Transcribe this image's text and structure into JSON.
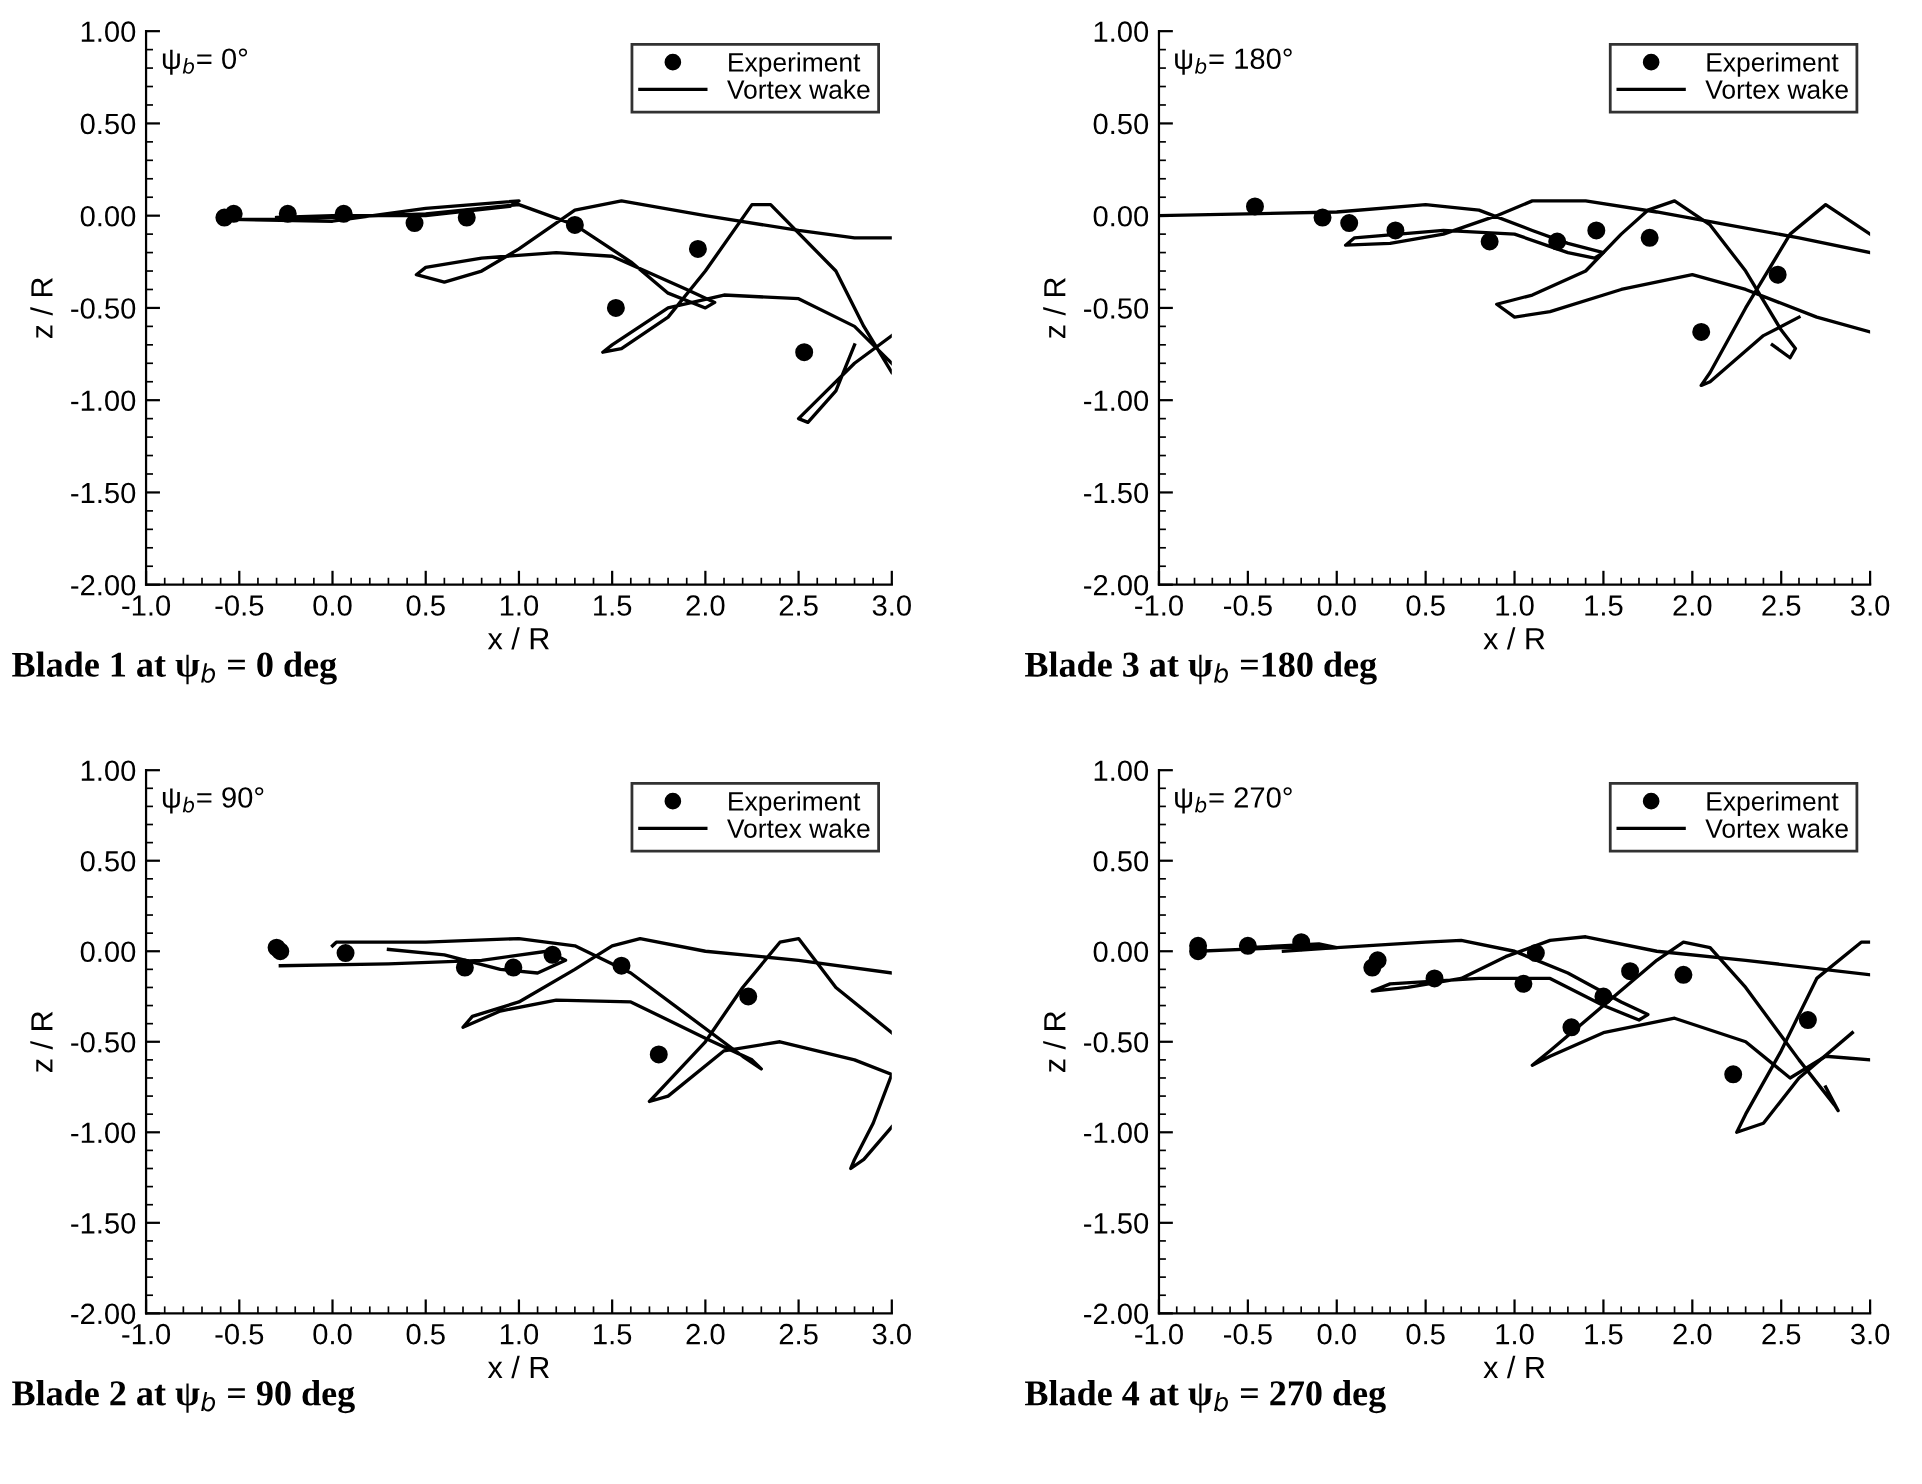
{
  "chart_data": [
    {
      "type": "scatter",
      "title": "Blade 1 at ψ$_{b}$ = 0 deg",
      "xlabel": "x / R",
      "ylabel": "z / R",
      "annotations": [
        "ψ$_{b}$= 0°"
      ],
      "xlim": [
        -1.0,
        3.0
      ],
      "ylim": [
        -2.0,
        1.0
      ],
      "xticks": [
        {
          "value": -1.0,
          "label": "-1.0"
        },
        {
          "value": -0.5,
          "label": "-0.5"
        },
        {
          "value": 0.0,
          "label": "0.0"
        },
        {
          "value": 0.5,
          "label": "0.5"
        },
        {
          "value": 1.0,
          "label": "1.0"
        },
        {
          "value": 1.5,
          "label": "1.5"
        },
        {
          "value": 2.0,
          "label": "2.0"
        },
        {
          "value": 2.5,
          "label": "2.5"
        },
        {
          "value": 3.0,
          "label": "3.0"
        }
      ],
      "yticks": [
        {
          "value": 1.0,
          "label": "1.00"
        },
        {
          "value": 0.5,
          "label": "0.50"
        },
        {
          "value": 0.0,
          "label": "0.00"
        },
        {
          "value": -0.5,
          "label": "-0.50"
        },
        {
          "value": -1.0,
          "label": "-1.00"
        },
        {
          "value": -1.5,
          "label": "-1.50"
        },
        {
          "value": -2.0,
          "label": "-2.00"
        }
      ],
      "grid": false,
      "legend": "top right",
      "series": [
        {
          "name": "Experiment",
          "type": "scatter",
          "marker": "circle",
          "color": "#000000",
          "x": [
            -0.58,
            -0.53,
            -0.24,
            0.06,
            0.44,
            0.72,
            1.3,
            1.52,
            1.96,
            2.53
          ],
          "values": [
            -0.01,
            0.01,
            0.01,
            0.01,
            -0.04,
            -0.01,
            -0.05,
            -0.5,
            -0.18,
            -0.74
          ]
        },
        {
          "name": "Vortex wake",
          "type": "line",
          "color": "#000000",
          "x": [
            -0.3,
            0.0,
            0.5,
            0.95,
            1.0,
            0.5,
            0.0,
            -0.55,
            -0.3,
            0.5,
            1.0,
            1.3,
            1.6,
            1.8,
            2.0,
            2.05,
            1.9,
            1.5,
            1.2,
            0.8,
            0.5,
            0.45,
            0.6,
            0.8,
            1.0,
            1.3,
            1.55,
            2.0,
            2.5,
            2.8,
            3.0
          ],
          "values": [
            -0.01,
            0.0,
            0.0,
            0.05,
            0.08,
            0.04,
            -0.03,
            -0.02,
            -0.02,
            0.01,
            0.06,
            -0.05,
            -0.25,
            -0.42,
            -0.5,
            -0.47,
            -0.4,
            -0.22,
            -0.2,
            -0.23,
            -0.28,
            -0.32,
            -0.36,
            -0.3,
            -0.18,
            0.03,
            0.08,
            0.0,
            -0.08,
            -0.12,
            -0.12
          ]
        },
        {
          "type": "line",
          "color": "#000000",
          "x": [
            3.0,
            2.8,
            2.5,
            2.1,
            1.8,
            1.5,
            1.45,
            1.55,
            1.8,
            2.0,
            2.25,
            2.35,
            2.7,
            2.85,
            3.0
          ],
          "values": [
            -0.8,
            -0.6,
            -0.45,
            -0.43,
            -0.5,
            -0.7,
            -0.74,
            -0.72,
            -0.55,
            -0.3,
            0.06,
            0.06,
            -0.3,
            -0.6,
            -0.85
          ]
        },
        {
          "type": "line",
          "color": "#000000",
          "x": [
            3.0,
            2.8,
            2.6,
            2.5,
            2.55,
            2.7,
            2.8
          ],
          "values": [
            -0.65,
            -0.8,
            -1.0,
            -1.1,
            -1.12,
            -0.95,
            -0.7
          ]
        }
      ]
    },
    {
      "type": "scatter",
      "title": "Blade 3 at ψ$_{b}$ =180 deg",
      "xlabel": "x / R",
      "ylabel": "z / R",
      "annotations": [
        "ψ$_{b}$= 180°"
      ],
      "xlim": [
        -1.0,
        3.0
      ],
      "ylim": [
        -2.0,
        1.0
      ],
      "xticks": [
        {
          "value": -1.0,
          "label": "-1.0"
        },
        {
          "value": -0.5,
          "label": "-0.5"
        },
        {
          "value": 0.0,
          "label": "0.0"
        },
        {
          "value": 0.5,
          "label": "0.5"
        },
        {
          "value": 1.0,
          "label": "1.0"
        },
        {
          "value": 1.5,
          "label": "1.5"
        },
        {
          "value": 2.0,
          "label": "2.0"
        },
        {
          "value": 2.5,
          "label": "2.5"
        },
        {
          "value": 3.0,
          "label": "3.0"
        }
      ],
      "yticks": [
        {
          "value": 1.0,
          "label": "1.00"
        },
        {
          "value": 0.5,
          "label": "0.50"
        },
        {
          "value": 0.0,
          "label": "0.00"
        },
        {
          "value": -0.5,
          "label": "-0.50"
        },
        {
          "value": -1.0,
          "label": "-1.00"
        },
        {
          "value": -1.5,
          "label": "-1.50"
        },
        {
          "value": -2.0,
          "label": "-2.00"
        }
      ],
      "grid": false,
      "legend": "top right",
      "series": [
        {
          "name": "Experiment",
          "type": "scatter",
          "marker": "circle",
          "color": "#000000",
          "x": [
            -0.46,
            -0.08,
            0.07,
            0.33,
            0.86,
            1.24,
            1.46,
            1.76,
            2.05,
            2.48
          ],
          "values": [
            0.05,
            -0.01,
            -0.04,
            -0.08,
            -0.14,
            -0.14,
            -0.08,
            -0.12,
            -0.63,
            -0.32
          ]
        },
        {
          "name": "Vortex wake",
          "type": "line",
          "color": "#000000",
          "x": [
            -1.0,
            0.0,
            0.5,
            0.8,
            1.1,
            1.3,
            1.5,
            1.45,
            1.3,
            1.0,
            0.6,
            0.1,
            0.05,
            0.3,
            0.6,
            0.9,
            1.1,
            1.4,
            1.8,
            2.2,
            2.6,
            3.0
          ],
          "values": [
            0.0,
            0.02,
            0.06,
            0.03,
            -0.08,
            -0.15,
            -0.2,
            -0.23,
            -0.2,
            -0.1,
            -0.08,
            -0.12,
            -0.16,
            -0.15,
            -0.1,
            0.0,
            0.08,
            0.08,
            0.02,
            -0.05,
            -0.12,
            -0.2
          ]
        },
        {
          "type": "line",
          "color": "#000000",
          "x": [
            3.0,
            2.7,
            2.3,
            2.0,
            1.6,
            1.2,
            1.0,
            0.9,
            1.1,
            1.4,
            1.6,
            1.75,
            1.9,
            2.1,
            2.3,
            2.5,
            2.58,
            2.55,
            2.45
          ],
          "values": [
            -0.63,
            -0.55,
            -0.4,
            -0.32,
            -0.4,
            -0.52,
            -0.55,
            -0.48,
            -0.43,
            -0.3,
            -0.1,
            0.03,
            0.08,
            -0.05,
            -0.3,
            -0.62,
            -0.72,
            -0.77,
            -0.7
          ]
        },
        {
          "type": "line",
          "color": "#000000",
          "x": [
            3.0,
            2.75,
            2.55,
            2.3,
            2.1,
            2.05,
            2.1,
            2.4,
            2.6
          ],
          "values": [
            -0.1,
            0.06,
            -0.1,
            -0.5,
            -0.85,
            -0.92,
            -0.9,
            -0.65,
            -0.55
          ]
        }
      ]
    },
    {
      "type": "scatter",
      "title": "Blade 2 at ψ$_{b}$ = 90 deg",
      "xlabel": "x / R",
      "ylabel": "z / R",
      "annotations": [
        "ψ$_{b}$= 90°"
      ],
      "xlim": [
        -1.0,
        3.0
      ],
      "ylim": [
        -2.0,
        1.0
      ],
      "xticks": [
        {
          "value": -1.0,
          "label": "-1.0"
        },
        {
          "value": -0.5,
          "label": "-0.5"
        },
        {
          "value": 0.0,
          "label": "0.0"
        },
        {
          "value": 0.5,
          "label": "0.5"
        },
        {
          "value": 1.0,
          "label": "1.0"
        },
        {
          "value": 1.5,
          "label": "1.5"
        },
        {
          "value": 2.0,
          "label": "2.0"
        },
        {
          "value": 2.5,
          "label": "2.5"
        },
        {
          "value": 3.0,
          "label": "3.0"
        }
      ],
      "yticks": [
        {
          "value": 1.0,
          "label": "1.00"
        },
        {
          "value": 0.5,
          "label": "0.50"
        },
        {
          "value": 0.0,
          "label": "0.00"
        },
        {
          "value": -0.5,
          "label": "-0.50"
        },
        {
          "value": -1.0,
          "label": "-1.00"
        },
        {
          "value": -1.5,
          "label": "-1.50"
        },
        {
          "value": -2.0,
          "label": "-2.00"
        }
      ],
      "grid": false,
      "legend": "top right",
      "series": [
        {
          "name": "Experiment",
          "type": "scatter",
          "marker": "circle",
          "color": "#000000",
          "x": [
            -0.3,
            -0.28,
            0.07,
            0.71,
            0.97,
            1.18,
            1.55,
            1.75,
            2.23
          ],
          "values": [
            0.02,
            0.0,
            -0.01,
            -0.09,
            -0.09,
            -0.02,
            -0.08,
            -0.57,
            -0.25
          ]
        },
        {
          "name": "Vortex wake",
          "type": "line",
          "color": "#000000",
          "x": [
            0.0,
            0.02,
            0.5,
            1.0,
            1.3,
            1.6,
            1.9,
            2.2,
            2.3,
            2.25,
            2.0,
            1.6,
            1.2,
            0.9,
            0.7,
            0.75,
            1.0,
            1.3,
            1.5,
            1.65,
            2.0,
            2.5,
            3.0
          ],
          "values": [
            0.03,
            0.05,
            0.05,
            0.07,
            0.03,
            -0.12,
            -0.35,
            -0.58,
            -0.65,
            -0.6,
            -0.48,
            -0.28,
            -0.27,
            -0.33,
            -0.42,
            -0.36,
            -0.28,
            -0.1,
            0.03,
            0.07,
            0.0,
            -0.05,
            -0.12
          ]
        },
        {
          "type": "line",
          "color": "#000000",
          "x": [
            -0.28,
            0.3,
            0.8,
            1.15,
            1.25,
            1.1,
            0.9,
            0.6,
            0.3
          ],
          "values": [
            -0.08,
            -0.07,
            -0.05,
            0.0,
            -0.05,
            -0.12,
            -0.1,
            -0.02,
            0.01
          ]
        },
        {
          "type": "line",
          "color": "#000000",
          "x": [
            3.0,
            2.7,
            2.5,
            2.4,
            2.2,
            2.0,
            1.8,
            1.7,
            1.8,
            2.1,
            2.4,
            2.8,
            3.0,
            2.9,
            2.8,
            2.78,
            2.85,
            3.0
          ],
          "values": [
            -0.45,
            -0.2,
            0.07,
            0.05,
            -0.2,
            -0.5,
            -0.72,
            -0.83,
            -0.8,
            -0.55,
            -0.5,
            -0.6,
            -0.68,
            -0.95,
            -1.15,
            -1.2,
            -1.15,
            -0.97
          ]
        }
      ]
    },
    {
      "type": "scatter",
      "title": "Blade 4 at ψ$_{b}$ = 270 deg",
      "xlabel": "x / R",
      "ylabel": "z / R",
      "annotations": [
        "ψ$_{b}$= 270°"
      ],
      "xlim": [
        -1.0,
        3.0
      ],
      "ylim": [
        -2.0,
        1.0
      ],
      "xticks": [
        {
          "value": -1.0,
          "label": "-1.0"
        },
        {
          "value": -0.5,
          "label": "-0.5"
        },
        {
          "value": 0.0,
          "label": "0.0"
        },
        {
          "value": 0.5,
          "label": "0.5"
        },
        {
          "value": 1.0,
          "label": "1.0"
        },
        {
          "value": 1.5,
          "label": "1.5"
        },
        {
          "value": 2.0,
          "label": "2.0"
        },
        {
          "value": 2.5,
          "label": "2.5"
        },
        {
          "value": 3.0,
          "label": "3.0"
        }
      ],
      "yticks": [
        {
          "value": 1.0,
          "label": "1.00"
        },
        {
          "value": 0.5,
          "label": "0.50"
        },
        {
          "value": 0.0,
          "label": "0.00"
        },
        {
          "value": -0.5,
          "label": "-0.50"
        },
        {
          "value": -1.0,
          "label": "-1.00"
        },
        {
          "value": -1.5,
          "label": "-1.50"
        },
        {
          "value": -2.0,
          "label": "-2.00"
        }
      ],
      "grid": false,
      "legend": "top right",
      "series": [
        {
          "name": "Experiment",
          "type": "scatter",
          "marker": "circle",
          "color": "#000000",
          "x": [
            -0.78,
            -0.78,
            -0.5,
            -0.2,
            0.2,
            0.23,
            0.55,
            1.05,
            1.12,
            1.32,
            1.5,
            1.65,
            1.95,
            2.23,
            2.65
          ],
          "values": [
            0.03,
            0.0,
            0.03,
            0.05,
            -0.09,
            -0.05,
            -0.15,
            -0.18,
            -0.01,
            -0.42,
            -0.25,
            -0.11,
            -0.13,
            -0.68,
            -0.38
          ]
        },
        {
          "name": "Vortex wake",
          "type": "line",
          "color": "#000000",
          "x": [
            -0.78,
            -0.3,
            0.0,
            0.5,
            0.7,
            1.0,
            1.3,
            1.6,
            1.75,
            1.7,
            1.5,
            1.2,
            0.8,
            0.3,
            0.2,
            0.4,
            0.7,
            0.95,
            1.2,
            1.4,
            1.8,
            2.3,
            3.0
          ],
          "values": [
            0.0,
            0.02,
            0.02,
            0.05,
            0.06,
            0.0,
            -0.12,
            -0.28,
            -0.35,
            -0.38,
            -0.3,
            -0.15,
            -0.15,
            -0.18,
            -0.22,
            -0.2,
            -0.15,
            -0.03,
            0.06,
            0.08,
            0.0,
            -0.05,
            -0.13
          ]
        },
        {
          "type": "line",
          "color": "#000000",
          "x": [
            -0.5,
            -0.1,
            0.0,
            -0.3
          ],
          "values": [
            0.02,
            0.04,
            0.02,
            0.0
          ]
        },
        {
          "type": "line",
          "color": "#000000",
          "x": [
            3.0,
            2.75,
            2.55,
            2.3,
            1.9,
            1.5,
            1.2,
            1.1,
            1.2,
            1.5,
            1.8,
            1.95,
            2.1,
            2.3,
            2.6,
            2.8,
            2.82,
            2.75
          ],
          "values": [
            -0.6,
            -0.58,
            -0.7,
            -0.5,
            -0.37,
            -0.45,
            -0.58,
            -0.63,
            -0.55,
            -0.3,
            -0.05,
            0.05,
            0.02,
            -0.2,
            -0.6,
            -0.85,
            -0.88,
            -0.75
          ]
        },
        {
          "type": "line",
          "color": "#000000",
          "x": [
            3.0,
            2.95,
            2.7,
            2.5,
            2.3,
            2.25,
            2.4,
            2.6,
            2.9
          ],
          "values": [
            0.05,
            0.05,
            -0.15,
            -0.55,
            -0.9,
            -1.0,
            -0.95,
            -0.7,
            -0.45
          ]
        }
      ]
    }
  ]
}
